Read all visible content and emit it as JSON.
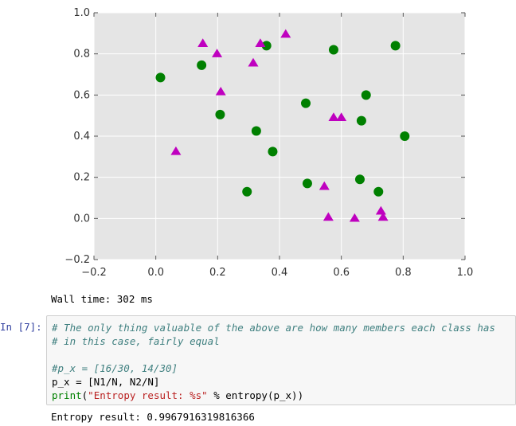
{
  "chart_data": {
    "type": "scatter",
    "xlim": [
      -0.2,
      1.0
    ],
    "ylim": [
      -0.2,
      1.0
    ],
    "xticks": [
      "−0.2",
      "0.0",
      "0.2",
      "0.4",
      "0.6",
      "0.8",
      "1.0"
    ],
    "yticks": [
      "−0.2",
      "0.0",
      "0.2",
      "0.4",
      "0.6",
      "0.8",
      "1.0"
    ],
    "grid": true,
    "background": "#e5e5e5",
    "series": [
      {
        "marker": "circle",
        "color": "#008000",
        "points": [
          [
            0.015,
            0.685
          ],
          [
            0.148,
            0.745
          ],
          [
            0.208,
            0.505
          ],
          [
            0.295,
            0.13
          ],
          [
            0.325,
            0.425
          ],
          [
            0.358,
            0.84
          ],
          [
            0.378,
            0.325
          ],
          [
            0.485,
            0.56
          ],
          [
            0.49,
            0.17
          ],
          [
            0.575,
            0.82
          ],
          [
            0.66,
            0.19
          ],
          [
            0.665,
            0.475
          ],
          [
            0.68,
            0.6
          ],
          [
            0.72,
            0.13
          ],
          [
            0.775,
            0.84
          ],
          [
            0.805,
            0.4
          ]
        ]
      },
      {
        "marker": "triangle",
        "color": "#bf00bf",
        "points": [
          [
            0.065,
            0.325
          ],
          [
            0.152,
            0.85
          ],
          [
            0.198,
            0.8
          ],
          [
            0.21,
            0.615
          ],
          [
            0.315,
            0.755
          ],
          [
            0.338,
            0.85
          ],
          [
            0.42,
            0.895
          ],
          [
            0.545,
            0.155
          ],
          [
            0.558,
            0.005
          ],
          [
            0.575,
            0.49
          ],
          [
            0.6,
            0.49
          ],
          [
            0.643,
            0.0
          ],
          [
            0.728,
            0.035
          ],
          [
            0.735,
            0.005
          ]
        ]
      }
    ]
  },
  "wall_time": "Wall time: 302 ms",
  "cell": {
    "prompt": "In [7]:",
    "lines": [
      [
        {
          "cls": "cm-comment",
          "text": "# The only thing valuable of the above are how many members each class has"
        }
      ],
      [
        {
          "cls": "cm-comment",
          "text": "# in this case, fairly equal"
        }
      ],
      [],
      [
        {
          "cls": "cm-comment",
          "text": "#p_x = [16/30, 14/30]"
        }
      ],
      [
        {
          "cls": "cm-plain",
          "text": "p_x = [N1/N, N2/N]"
        }
      ],
      [
        {
          "cls": "cm-builtin",
          "text": "print"
        },
        {
          "cls": "cm-plain",
          "text": "("
        },
        {
          "cls": "cm-string",
          "text": "\"Entropy result: %s\""
        },
        {
          "cls": "cm-plain",
          "text": " % entropy(p_x))"
        }
      ]
    ],
    "output": "Entropy result: 0.9967916319816366"
  }
}
